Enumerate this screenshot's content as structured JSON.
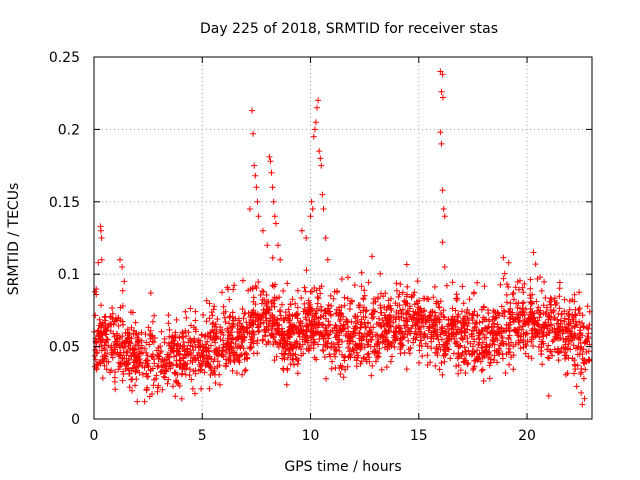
{
  "chart_data": {
    "type": "scatter",
    "title": "Day 225 of 2018, SRMTID for receiver stas",
    "xlabel": "GPS time / hours",
    "ylabel": "SRMTID / TECUs",
    "xlim": [
      0,
      23
    ],
    "ylim": [
      0,
      0.25
    ],
    "x_ticks": [
      0,
      5,
      10,
      15,
      20
    ],
    "x_tick_labels": [
      "0",
      "5",
      "10",
      "15",
      "20"
    ],
    "y_ticks": [
      0,
      0.05,
      0.1,
      0.15,
      0.2,
      0.25
    ],
    "y_tick_labels": [
      "0",
      "0.05",
      "0.1",
      "0.15",
      "0.2",
      "0.25"
    ],
    "grid": true,
    "marker": "plus",
    "color": "#ff0000",
    "baseline": [
      [
        0,
        0.05
      ],
      [
        0.5,
        0.055
      ],
      [
        1,
        0.052
      ],
      [
        1.5,
        0.047
      ],
      [
        2,
        0.043
      ],
      [
        2.5,
        0.042
      ],
      [
        3,
        0.041
      ],
      [
        3.5,
        0.042
      ],
      [
        4,
        0.043
      ],
      [
        4.5,
        0.045
      ],
      [
        5,
        0.048
      ],
      [
        5.5,
        0.05
      ],
      [
        6,
        0.052
      ],
      [
        6.5,
        0.055
      ],
      [
        7,
        0.06
      ],
      [
        7.5,
        0.068
      ],
      [
        8,
        0.07
      ],
      [
        8.5,
        0.062
      ],
      [
        9,
        0.058
      ],
      [
        9.5,
        0.06
      ],
      [
        10,
        0.07
      ],
      [
        10.5,
        0.065
      ],
      [
        11,
        0.06
      ],
      [
        11.5,
        0.058
      ],
      [
        12,
        0.057
      ],
      [
        12.5,
        0.06
      ],
      [
        13,
        0.062
      ],
      [
        13.5,
        0.063
      ],
      [
        14,
        0.064
      ],
      [
        14.5,
        0.065
      ],
      [
        15,
        0.063
      ],
      [
        15.5,
        0.062
      ],
      [
        16,
        0.063
      ],
      [
        16.5,
        0.06
      ],
      [
        17,
        0.058
      ],
      [
        17.5,
        0.056
      ],
      [
        18,
        0.055
      ],
      [
        18.5,
        0.058
      ],
      [
        19,
        0.062
      ],
      [
        19.5,
        0.065
      ],
      [
        20,
        0.068
      ],
      [
        20.5,
        0.066
      ],
      [
        21,
        0.062
      ],
      [
        21.5,
        0.06
      ],
      [
        22,
        0.057
      ],
      [
        22.5,
        0.055
      ],
      [
        22.9,
        0.05
      ]
    ],
    "spread": 0.012,
    "series": [
      {
        "name": "SRMTID",
        "highlighted_points": [
          {
            "x": 0.05,
            "y": 0.088
          },
          {
            "x": 0.1,
            "y": 0.086
          },
          {
            "x": 0.2,
            "y": 0.108
          },
          {
            "x": 0.3,
            "y": 0.133
          },
          {
            "x": 0.32,
            "y": 0.13
          },
          {
            "x": 0.35,
            "y": 0.125
          },
          {
            "x": 0.36,
            "y": 0.11
          },
          {
            "x": 1.2,
            "y": 0.11
          },
          {
            "x": 1.3,
            "y": 0.105
          },
          {
            "x": 1.4,
            "y": 0.095
          },
          {
            "x": 7.3,
            "y": 0.213
          },
          {
            "x": 7.35,
            "y": 0.197
          },
          {
            "x": 7.4,
            "y": 0.175
          },
          {
            "x": 7.45,
            "y": 0.168
          },
          {
            "x": 7.5,
            "y": 0.16
          },
          {
            "x": 7.55,
            "y": 0.15
          },
          {
            "x": 7.2,
            "y": 0.145
          },
          {
            "x": 7.6,
            "y": 0.14
          },
          {
            "x": 7.8,
            "y": 0.13
          },
          {
            "x": 8.0,
            "y": 0.12
          },
          {
            "x": 8.1,
            "y": 0.181
          },
          {
            "x": 8.15,
            "y": 0.178
          },
          {
            "x": 8.2,
            "y": 0.17
          },
          {
            "x": 8.25,
            "y": 0.16
          },
          {
            "x": 8.3,
            "y": 0.15
          },
          {
            "x": 8.35,
            "y": 0.14
          },
          {
            "x": 8.4,
            "y": 0.135
          },
          {
            "x": 8.5,
            "y": 0.12
          },
          {
            "x": 8.6,
            "y": 0.11
          },
          {
            "x": 9.6,
            "y": 0.13
          },
          {
            "x": 9.8,
            "y": 0.125
          },
          {
            "x": 10.0,
            "y": 0.14
          },
          {
            "x": 10.05,
            "y": 0.15
          },
          {
            "x": 10.1,
            "y": 0.145
          },
          {
            "x": 10.15,
            "y": 0.195
          },
          {
            "x": 10.2,
            "y": 0.2
          },
          {
            "x": 10.25,
            "y": 0.205
          },
          {
            "x": 10.3,
            "y": 0.215
          },
          {
            "x": 10.35,
            "y": 0.22
          },
          {
            "x": 10.4,
            "y": 0.185
          },
          {
            "x": 10.45,
            "y": 0.18
          },
          {
            "x": 10.5,
            "y": 0.175
          },
          {
            "x": 10.55,
            "y": 0.155
          },
          {
            "x": 10.6,
            "y": 0.145
          },
          {
            "x": 10.7,
            "y": 0.125
          },
          {
            "x": 10.8,
            "y": 0.11
          },
          {
            "x": 16.0,
            "y": 0.24
          },
          {
            "x": 16.1,
            "y": 0.238
          },
          {
            "x": 16.05,
            "y": 0.226
          },
          {
            "x": 16.12,
            "y": 0.222
          },
          {
            "x": 16.0,
            "y": 0.198
          },
          {
            "x": 16.05,
            "y": 0.19
          },
          {
            "x": 16.1,
            "y": 0.158
          },
          {
            "x": 16.15,
            "y": 0.145
          },
          {
            "x": 16.2,
            "y": 0.14
          },
          {
            "x": 16.1,
            "y": 0.122
          },
          {
            "x": 16.2,
            "y": 0.105
          },
          {
            "x": 16.3,
            "y": 0.092
          },
          {
            "x": 20.3,
            "y": 0.115
          },
          {
            "x": 20.4,
            "y": 0.107
          },
          {
            "x": 22.5,
            "y": 0.018
          },
          {
            "x": 22.55,
            "y": 0.01
          }
        ]
      }
    ]
  }
}
